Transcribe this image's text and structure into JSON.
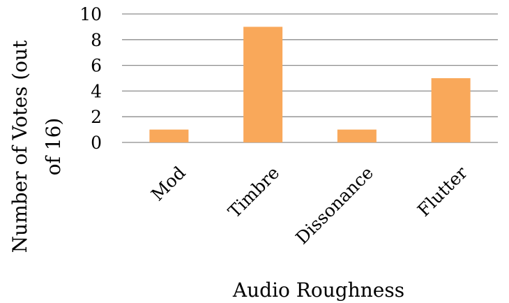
{
  "chart_data": {
    "type": "bar",
    "categories": [
      "Mod",
      "Timbre",
      "Dissonance",
      "Flutter"
    ],
    "values": [
      1,
      9,
      1,
      5
    ],
    "title": "",
    "xlabel": "Audio Roughness",
    "ylabel_lines": [
      "Number of Votes (out",
      "of 16)"
    ],
    "ylim": [
      0,
      10
    ],
    "yticks": [
      0,
      2,
      4,
      6,
      8,
      10
    ],
    "grid": true,
    "legend": "none",
    "bar_color": "#F9A85A"
  }
}
